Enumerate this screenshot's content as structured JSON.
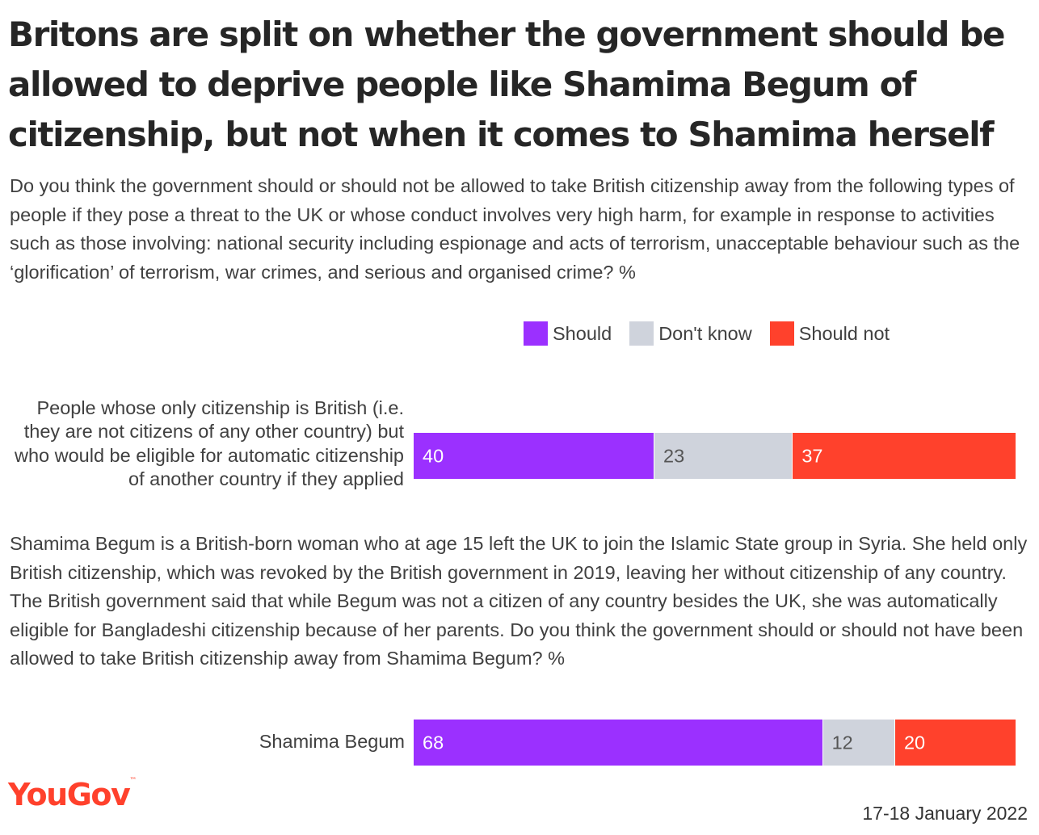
{
  "title": "Britons are split on whether the government should be allowed to deprive people like Shamima Begum of citizenship, but not when it comes to Shamima herself",
  "question_1": "Do you think the government should or should not be allowed to take British citizenship away from the following types of people if they pose a threat to the UK or whose conduct involves very high harm, for example in response to activities such as those involving: national security including espionage and acts of terrorism, unacceptable behaviour such as the ‘glorification’ of terrorism, war crimes, and serious and organised crime? %",
  "question_2": "Shamima Begum is a British-born woman who at age 15 left the UK to join the Islamic State group in Syria. She held only British citizenship, which was revoked by the British government in 2019, leaving her without citizenship of any country. The British government said that while Begum was not a citizen of any country besides the UK, she was automatically eligible for Bangladeshi citizenship because of her parents. Do you think the government should or should not have been allowed to take British citizenship away from Shamima Begum? %",
  "logo": "YouGov",
  "date": "17-18 January 2022",
  "colors": {
    "should": "#9b30ff",
    "dont_know": "#cfd3dc",
    "should_not": "#ff412c"
  },
  "chart_data": {
    "type": "bar",
    "orientation": "horizontal",
    "stacked": true,
    "legend_position": "top-right",
    "legend": [
      "Should",
      "Don't know",
      "Should not"
    ],
    "categories": [
      "People whose only citizenship is British (i.e. they are not citizens of any other country) but who would be eligible for automatic citizenship of another country if they applied",
      "Shamima Begum"
    ],
    "series": [
      {
        "name": "Should",
        "values": [
          40,
          68
        ],
        "color": "#9b30ff"
      },
      {
        "name": "Don't know",
        "values": [
          23,
          12
        ],
        "color": "#cfd3dc"
      },
      {
        "name": "Should not",
        "values": [
          37,
          20
        ],
        "color": "#ff412c"
      }
    ],
    "xlim": [
      0,
      100
    ]
  }
}
